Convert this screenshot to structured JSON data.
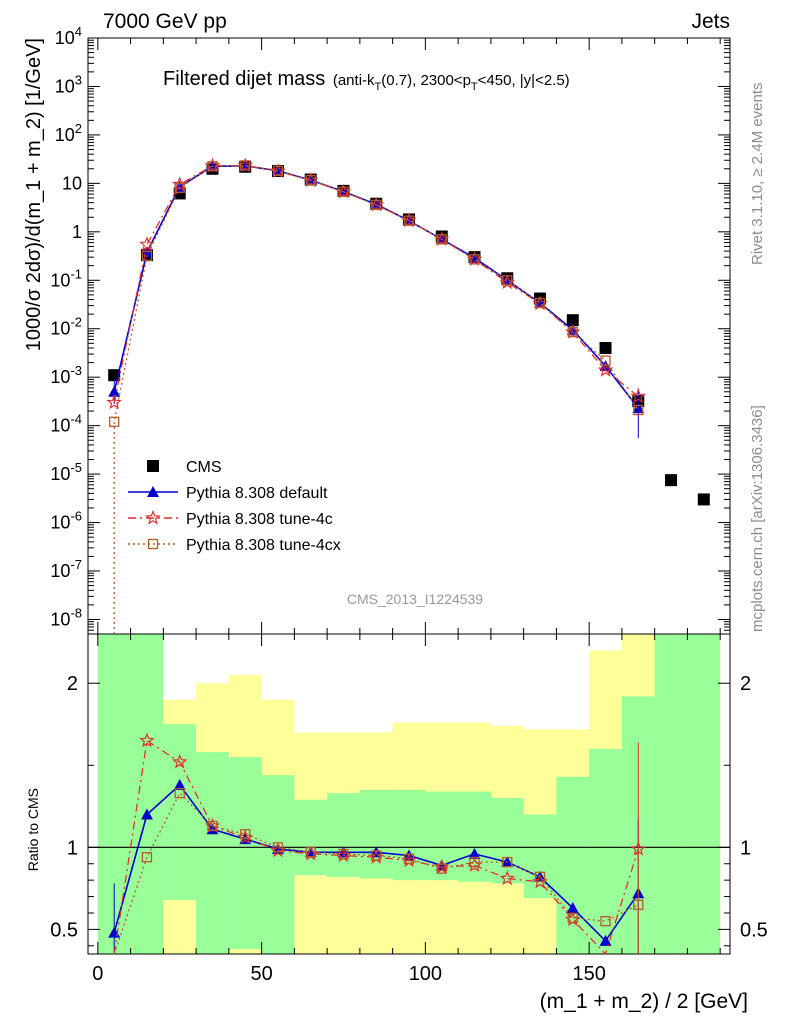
{
  "header": {
    "left": "7000 GeV pp",
    "right": "Jets",
    "title_main": "Filtered dijet mass",
    "title_sub_1": "(anti-k",
    "title_sub_T1": "T",
    "title_sub_2": "(0.7), 2300<p",
    "title_sub_T2": "T",
    "title_sub_3": "<450, |y|<2.5)",
    "analysis_id": "CMS_2013_I1224539"
  },
  "side_labels": {
    "rivet": "Rivet 3.1.10, ≥ 2.4M events",
    "mcplots": "mcplots.cern.ch [arXiv:1306.3436]"
  },
  "axes": {
    "ylabel_main": "1000/σ 2dσ)/d(m_1 + m_2) [1/GeV]",
    "ylabel_ratio": "Ratio to CMS",
    "xlabel": "(m_1 + m_2) / 2 [GeV]"
  },
  "legend": [
    {
      "label": "CMS",
      "marker": "square",
      "color": "#000000"
    },
    {
      "label": "Pythia 8.308 default",
      "marker": "triangle",
      "color": "#0000cc"
    },
    {
      "label": "Pythia 8.308 tune-4c",
      "marker": "star",
      "color": "#e03030"
    },
    {
      "label": "Pythia 8.308 tune-4cx",
      "marker": "open-square",
      "color": "#b85a28"
    }
  ],
  "chart_data": {
    "type": "scatter",
    "xlim": [
      -3,
      193
    ],
    "ylim_log": [
      -8.3,
      4
    ],
    "ylim_ratio": [
      0.35,
      2.3
    ],
    "x_ticks": [
      0,
      50,
      100,
      150
    ],
    "y_tick_exponents": [
      -8,
      -7,
      -6,
      -5,
      -4,
      -3,
      -2,
      -1,
      0,
      1,
      2,
      3,
      4
    ],
    "y_tick_labels": [
      "10^-8",
      "10^-7",
      "10^-6",
      "10^-5",
      "10^-4",
      "10^-3",
      "10^-2",
      "10^-1",
      "1",
      "10",
      "10^2",
      "10^3",
      "10^4"
    ],
    "ratio_ticks": [
      0.5,
      1,
      2
    ],
    "bins_x": [
      5,
      15,
      25,
      35,
      45,
      55,
      65,
      75,
      85,
      95,
      105,
      115,
      125,
      135,
      145,
      155,
      165,
      175,
      185
    ],
    "bin_edges": [
      0,
      10,
      20,
      30,
      40,
      50,
      60,
      70,
      80,
      90,
      100,
      110,
      120,
      130,
      140,
      150,
      160,
      170,
      180,
      190
    ],
    "series": [
      {
        "name": "CMS",
        "x": [
          5,
          15,
          25,
          35,
          45,
          55,
          65,
          75,
          85,
          95,
          105,
          115,
          125,
          135,
          145,
          155,
          165,
          175,
          185
        ],
        "y": [
          0.0011,
          0.33,
          6.2,
          20,
          22,
          18,
          12,
          7,
          3.8,
          1.8,
          0.8,
          0.3,
          0.11,
          0.042,
          0.015,
          0.004,
          0.00032,
          7.5e-06,
          3e-06
        ]
      },
      {
        "name": "Pythia 8.308 default",
        "x": [
          5,
          15,
          25,
          35,
          45,
          55,
          65,
          75,
          85,
          95,
          105,
          115,
          125,
          135,
          145,
          155,
          165
        ],
        "y": [
          0.0005,
          0.38,
          8.5,
          22.5,
          23,
          18.2,
          11.7,
          6.8,
          3.7,
          1.7,
          0.7,
          0.29,
          0.1,
          0.034,
          0.0095,
          0.0017,
          0.00023
        ],
        "ratio": [
          0.48,
          1.2,
          1.38,
          1.11,
          1.05,
          0.99,
          0.97,
          0.97,
          0.97,
          0.95,
          0.89,
          0.96,
          0.91,
          0.82,
          0.63,
          0.43,
          0.72
        ],
        "ratio_err": [
          0.3,
          0,
          0,
          0,
          0,
          0,
          0,
          0,
          0,
          0,
          0,
          0,
          0,
          0,
          0,
          0,
          0.45
        ]
      },
      {
        "name": "Pythia 8.308 tune-4c",
        "x": [
          5,
          15,
          25,
          35,
          45,
          55,
          65,
          75,
          85,
          95,
          105,
          115,
          125,
          135,
          145,
          155,
          165
        ],
        "y": [
          0.0003,
          0.55,
          9.5,
          23,
          23.3,
          17.8,
          11.5,
          6.7,
          3.6,
          1.7,
          0.7,
          0.27,
          0.09,
          0.033,
          0.0085,
          0.0014,
          0.0004
        ],
        "ratio": [
          0.3,
          1.65,
          1.52,
          1.13,
          1.06,
          0.98,
          0.96,
          0.95,
          0.94,
          0.92,
          0.88,
          0.89,
          0.81,
          0.79,
          0.56,
          0.34,
          0.99
        ],
        "ratio_err": [
          0,
          0,
          0,
          0,
          0,
          0,
          0,
          0,
          0,
          0,
          0,
          0,
          0,
          0,
          0,
          0,
          0.65
        ]
      },
      {
        "name": "Pythia 8.308 tune-4cx",
        "x": [
          5,
          15,
          25,
          35,
          45,
          55,
          65,
          75,
          85,
          95,
          105,
          115,
          125,
          135,
          145,
          155,
          165
        ],
        "y": [
          0.00012,
          0.32,
          8.1,
          22.6,
          23.5,
          18.2,
          11.7,
          6.7,
          3.6,
          1.7,
          0.7,
          0.27,
          0.1,
          0.034,
          0.0085,
          0.0022,
          0.00021
        ],
        "ratio": [
          0.1,
          0.94,
          1.33,
          1.13,
          1.08,
          1.0,
          0.97,
          0.96,
          0.95,
          0.93,
          0.87,
          0.91,
          0.91,
          0.82,
          0.57,
          0.55,
          0.65
        ],
        "ratio_err": [
          0,
          0,
          0,
          0,
          0,
          0,
          0,
          0,
          0,
          0,
          0,
          0,
          0,
          0,
          0,
          0,
          0.35
        ]
      }
    ],
    "uncertainty_bands": {
      "yellow": {
        "lo": [
          0.25,
          0.25,
          0.25,
          0.25,
          0.25,
          0.25,
          0.25,
          0.25,
          0.25,
          0.25,
          0.25,
          0.25,
          0.25,
          0.25,
          0.25,
          0.25,
          0.25,
          0.25,
          0.25
        ],
        "hi": [
          2.3,
          2.3,
          1.9,
          2.0,
          2.05,
          1.9,
          1.7,
          1.7,
          1.7,
          1.76,
          1.76,
          1.76,
          1.74,
          1.72,
          1.72,
          2.2,
          2.3,
          2.3,
          2.3
        ]
      },
      "green": {
        "lo": [
          0.25,
          0.25,
          0.68,
          0.25,
          0.38,
          0.25,
          0.83,
          0.82,
          0.81,
          0.8,
          0.8,
          0.79,
          0.78,
          0.69,
          0.25,
          0.25,
          0.25,
          0.25,
          0.25
        ],
        "hi": [
          2.3,
          2.3,
          1.75,
          1.58,
          1.55,
          1.44,
          1.29,
          1.33,
          1.35,
          1.35,
          1.34,
          1.34,
          1.3,
          1.2,
          1.43,
          1.6,
          1.92,
          2.3,
          2.3
        ]
      }
    }
  }
}
